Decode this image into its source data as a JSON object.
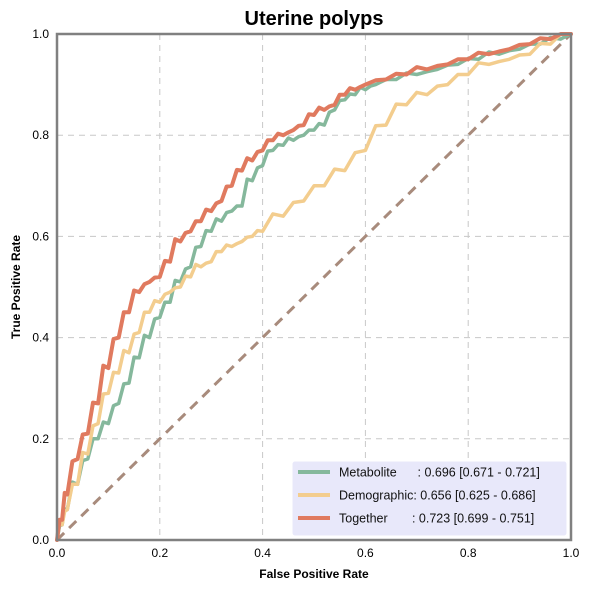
{
  "chart_data": {
    "type": "line",
    "title": "Uterine polyps",
    "xlabel": "False Positive Rate",
    "ylabel": "True Positive Rate",
    "xlim": [
      0,
      1
    ],
    "ylim": [
      0,
      1
    ],
    "x_ticks": [
      "0.0",
      "0.2",
      "0.4",
      "0.6",
      "0.8",
      "1.0"
    ],
    "y_ticks": [
      "0.0",
      "0.2",
      "0.4",
      "0.6",
      "0.8",
      "1.0"
    ],
    "grid": true,
    "legend_position": "lower-right",
    "series": [
      {
        "name": "Metabolite",
        "legend_label": "Metabolite      : 0.696 [0.671 - 0.721]",
        "color": "#85b89c",
        "x": [
          0,
          0.01,
          0.02,
          0.04,
          0.06,
          0.08,
          0.1,
          0.12,
          0.14,
          0.16,
          0.18,
          0.2,
          0.22,
          0.24,
          0.26,
          0.28,
          0.3,
          0.32,
          0.34,
          0.36,
          0.38,
          0.4,
          0.42,
          0.44,
          0.46,
          0.48,
          0.5,
          0.52,
          0.54,
          0.56,
          0.58,
          0.6,
          0.62,
          0.66,
          0.7,
          0.74,
          0.78,
          0.82,
          0.86,
          0.9,
          0.94,
          0.98,
          1.0
        ],
        "y": [
          0,
          0.03,
          0.06,
          0.11,
          0.16,
          0.2,
          0.23,
          0.27,
          0.31,
          0.36,
          0.4,
          0.44,
          0.47,
          0.51,
          0.54,
          0.58,
          0.61,
          0.63,
          0.65,
          0.66,
          0.71,
          0.74,
          0.77,
          0.78,
          0.79,
          0.8,
          0.81,
          0.82,
          0.85,
          0.87,
          0.88,
          0.89,
          0.9,
          0.91,
          0.92,
          0.93,
          0.94,
          0.95,
          0.96,
          0.97,
          0.98,
          0.99,
          1.0
        ]
      },
      {
        "name": "Demographic",
        "legend_label": "Demographic: 0.656 [0.625 - 0.686]",
        "color": "#f3cd8e",
        "x": [
          0,
          0.01,
          0.02,
          0.04,
          0.06,
          0.08,
          0.1,
          0.12,
          0.14,
          0.16,
          0.18,
          0.2,
          0.22,
          0.24,
          0.26,
          0.28,
          0.3,
          0.32,
          0.34,
          0.36,
          0.38,
          0.4,
          0.44,
          0.48,
          0.52,
          0.56,
          0.6,
          0.64,
          0.68,
          0.72,
          0.76,
          0.8,
          0.84,
          0.88,
          0.92,
          0.96,
          1.0
        ],
        "y": [
          0,
          0.03,
          0.06,
          0.11,
          0.17,
          0.23,
          0.29,
          0.33,
          0.37,
          0.41,
          0.45,
          0.47,
          0.49,
          0.5,
          0.52,
          0.54,
          0.55,
          0.57,
          0.58,
          0.59,
          0.6,
          0.61,
          0.64,
          0.67,
          0.7,
          0.73,
          0.77,
          0.82,
          0.86,
          0.88,
          0.9,
          0.92,
          0.94,
          0.95,
          0.96,
          0.98,
          1.0
        ]
      },
      {
        "name": "Together",
        "legend_label": "Together       : 0.723 [0.699 - 0.751]",
        "color": "#e07a5f",
        "x": [
          0,
          0.01,
          0.02,
          0.04,
          0.06,
          0.08,
          0.1,
          0.12,
          0.14,
          0.16,
          0.18,
          0.2,
          0.22,
          0.24,
          0.26,
          0.28,
          0.3,
          0.32,
          0.34,
          0.36,
          0.38,
          0.4,
          0.42,
          0.44,
          0.46,
          0.48,
          0.5,
          0.52,
          0.54,
          0.56,
          0.58,
          0.6,
          0.64,
          0.68,
          0.72,
          0.76,
          0.8,
          0.84,
          0.88,
          0.92,
          0.96,
          1.0
        ],
        "y": [
          0,
          0.04,
          0.09,
          0.16,
          0.21,
          0.27,
          0.34,
          0.4,
          0.45,
          0.49,
          0.51,
          0.52,
          0.55,
          0.59,
          0.61,
          0.63,
          0.65,
          0.67,
          0.7,
          0.73,
          0.75,
          0.77,
          0.79,
          0.8,
          0.81,
          0.82,
          0.84,
          0.85,
          0.86,
          0.88,
          0.89,
          0.9,
          0.91,
          0.92,
          0.93,
          0.94,
          0.95,
          0.96,
          0.97,
          0.98,
          0.99,
          1.0
        ]
      },
      {
        "name": "",
        "legend_label": "",
        "color": "#a88b7c",
        "dashed": true,
        "x": [
          0,
          1
        ],
        "y": [
          0,
          1
        ]
      }
    ]
  }
}
